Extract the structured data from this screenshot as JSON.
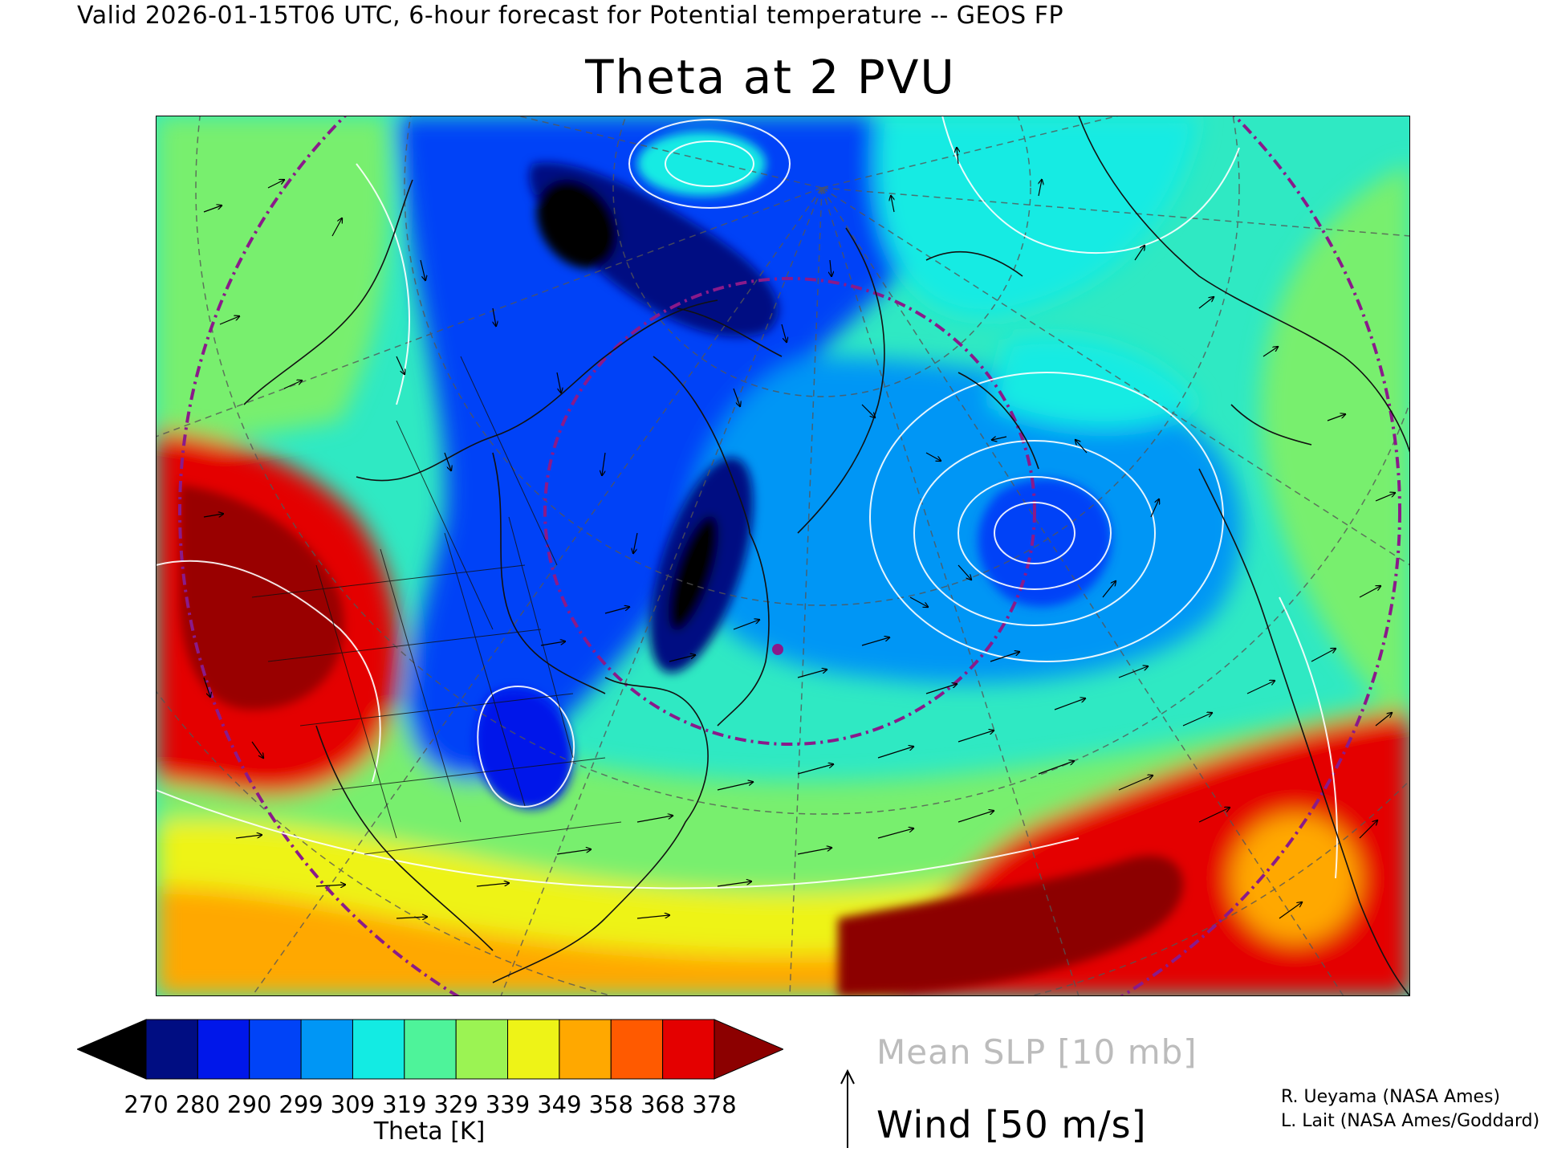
{
  "header": {
    "valid_line": "Valid 2026-01-15T06 UTC, 6-hour forecast for Potential temperature -- GEOS FP",
    "title": "Theta at 2 PVU"
  },
  "colorbar": {
    "ticks": [
      "270",
      "280",
      "290",
      "299",
      "309",
      "319",
      "329",
      "339",
      "349",
      "358",
      "368",
      "378"
    ],
    "colors": [
      "#000000",
      "#000d82",
      "#0017ea",
      "#0043f7",
      "#0096f5",
      "#13ebe3",
      "#4ef39a",
      "#9bf353",
      "#eef317",
      "#ffa800",
      "#ff5a00",
      "#e40000",
      "#8c0000"
    ],
    "label": "Theta [K]"
  },
  "legend": {
    "slp": "Mean SLP [10 mb]",
    "wind": "Wind [50 m/s]"
  },
  "credits": {
    "line1": "R. Ueyama (NASA Ames)",
    "line2": "L. Lait (NASA Ames/Goddard)"
  },
  "map_colors": {
    "line_magenta": "#8a1a8a",
    "grid": "#555555",
    "coast": "#111111",
    "slp_contour": "#ffffff"
  }
}
